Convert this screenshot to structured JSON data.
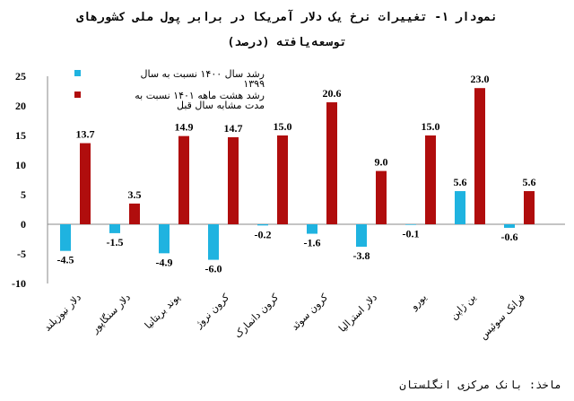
{
  "chart_data": {
    "type": "bar",
    "title": "نمودار ۱- تغییرات نرخ یک دلار آمریکا در برابر پول ملی کشورهای توسعه‌یافته (درصد)",
    "title_line1": "نمودار ۱- تغییرات نرخ یک دلار آمریکا در برابر پول ملی کشورهای",
    "title_line2": "توسعه‌یافته (درصد)",
    "categories": [
      "دلار نیوزیلند",
      "دلار سنگاپور",
      "پوند بریتانیا",
      "کرون نروژ",
      "کرون دانمارک",
      "کرون سوئد",
      "دلار استرالیا",
      "یورو",
      "ین ژاپن",
      "فرانک سوئیس"
    ],
    "series": [
      {
        "name": "رشد سال ۱۴۰۰ نسبت به سال ۱۳۹۹",
        "color": "#1fb3e0",
        "values": [
          -4.5,
          -1.5,
          -4.9,
          -6.0,
          -0.2,
          -1.6,
          -3.8,
          -0.1,
          5.6,
          -0.6
        ]
      },
      {
        "name": "رشد هشت ماهه ۱۴۰۱ نسبت به مدت مشابه سال قبل",
        "color": "#b00d0d",
        "values": [
          13.7,
          3.5,
          14.9,
          14.7,
          15.0,
          20.6,
          9.0,
          15.0,
          23.0,
          5.6
        ]
      }
    ],
    "legend_lines": [
      [
        "رشد سال ۱۴۰۰ نسبت به سال",
        "۱۳۹۹"
      ],
      [
        "رشد هشت ماهه ۱۴۰۱ نسبت به",
        "مدت مشابه سال قبل"
      ]
    ],
    "yticks": [
      25,
      20,
      15,
      10,
      5,
      0,
      -5,
      -10
    ],
    "ylim": [
      -10,
      25
    ],
    "grid": false,
    "legend_position": "top-left",
    "source": "ماخذ: بانک مرکزی انگلستان"
  }
}
